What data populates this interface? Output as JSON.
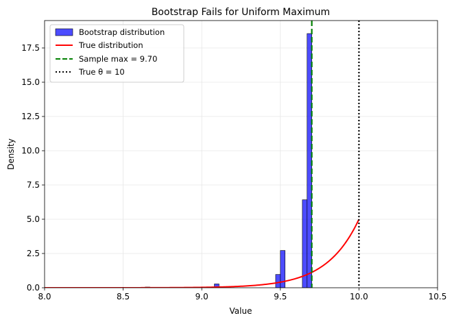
{
  "chart_data": {
    "type": "bar",
    "title": "Bootstrap Fails for Uniform Maximum",
    "xlabel": "Value",
    "ylabel": "Density",
    "xlim": [
      8.0,
      10.5
    ],
    "ylim": [
      0,
      19.5
    ],
    "grid": true,
    "legend_position": "top-left",
    "x_ticks": [
      "8.0",
      "8.5",
      "9.0",
      "9.5",
      "10.0",
      "10.5"
    ],
    "y_ticks": [
      "0.0",
      "2.5",
      "5.0",
      "7.5",
      "10.0",
      "12.5",
      "15.0",
      "17.5"
    ],
    "histogram": {
      "name": "Bootstrap distribution",
      "color": "#0000ff",
      "bins": [
        {
          "x0": 8.64,
          "x1": 8.67,
          "density": 0.05
        },
        {
          "x0": 9.08,
          "x1": 9.11,
          "density": 0.28
        },
        {
          "x0": 9.47,
          "x1": 9.5,
          "density": 0.97
        },
        {
          "x0": 9.5,
          "x1": 9.53,
          "density": 2.72
        },
        {
          "x0": 9.64,
          "x1": 9.67,
          "density": 6.42
        },
        {
          "x0": 9.67,
          "x1": 9.7,
          "density": 18.55
        }
      ]
    },
    "true_distribution": {
      "name": "True distribution",
      "color": "#ff0000",
      "formula": "n * x^(n-1) / theta^n",
      "n": 50,
      "theta": 10,
      "x_range": [
        8.0,
        10.0
      ]
    },
    "sample_max": {
      "name": "Sample max = 9.70",
      "value": 9.7,
      "color": "#008000"
    },
    "true_theta": {
      "name": "True θ = 10",
      "value": 10.0,
      "color": "#000000"
    }
  }
}
